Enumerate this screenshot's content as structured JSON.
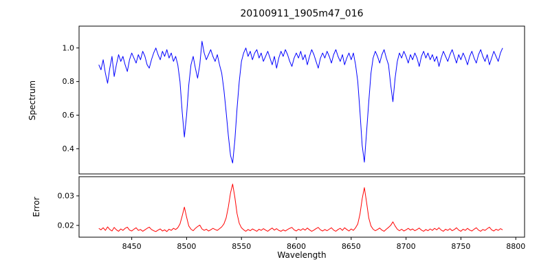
{
  "chart_data": {
    "type": "line",
    "title": "20100911_1905m47_016",
    "xlabel": "Wavelength",
    "axis_color": "#000000",
    "xlim": [
      8402,
      8808
    ],
    "xticks": [
      8450,
      8500,
      8550,
      8600,
      8650,
      8700,
      8750,
      8800
    ],
    "x": [
      8420,
      8422,
      8424,
      8426,
      8428,
      8430,
      8432,
      8434,
      8436,
      8438,
      8440,
      8442,
      8444,
      8446,
      8448,
      8450,
      8452,
      8454,
      8456,
      8458,
      8460,
      8462,
      8464,
      8466,
      8468,
      8470,
      8472,
      8474,
      8476,
      8478,
      8480,
      8482,
      8484,
      8486,
      8488,
      8490,
      8492,
      8494,
      8496,
      8498,
      8500,
      8502,
      8504,
      8506,
      8508,
      8510,
      8512,
      8514,
      8516,
      8518,
      8520,
      8522,
      8524,
      8526,
      8528,
      8530,
      8532,
      8534,
      8536,
      8538,
      8540,
      8542,
      8544,
      8546,
      8548,
      8550,
      8552,
      8554,
      8556,
      8558,
      8560,
      8562,
      8564,
      8566,
      8568,
      8570,
      8572,
      8574,
      8576,
      8578,
      8580,
      8582,
      8584,
      8586,
      8588,
      8590,
      8592,
      8594,
      8596,
      8598,
      8600,
      8602,
      8604,
      8606,
      8608,
      8610,
      8612,
      8614,
      8616,
      8618,
      8620,
      8622,
      8624,
      8626,
      8628,
      8630,
      8632,
      8634,
      8636,
      8638,
      8640,
      8642,
      8644,
      8646,
      8648,
      8650,
      8652,
      8654,
      8656,
      8658,
      8660,
      8662,
      8664,
      8666,
      8668,
      8670,
      8672,
      8674,
      8676,
      8678,
      8680,
      8682,
      8684,
      8686,
      8688,
      8690,
      8692,
      8694,
      8696,
      8698,
      8700,
      8702,
      8704,
      8706,
      8708,
      8710,
      8712,
      8714,
      8716,
      8718,
      8720,
      8722,
      8724,
      8726,
      8728,
      8730,
      8732,
      8734,
      8736,
      8738,
      8740,
      8742,
      8744,
      8746,
      8748,
      8750,
      8752,
      8754,
      8756,
      8758,
      8760,
      8762,
      8764,
      8766,
      8768,
      8770,
      8772,
      8774,
      8776,
      8778,
      8780,
      8782,
      8784,
      8786,
      8788
    ],
    "panels": [
      {
        "series_name": "spectrum-line",
        "ylabel": "Spectrum",
        "color": "#0000ff",
        "ylim": [
          0.25,
          1.13
        ],
        "yticks": [
          0.4,
          0.6,
          0.8,
          1.0
        ],
        "ytick_labels": [
          "0.4",
          "0.6",
          "0.8",
          "1.0"
        ],
        "values": [
          0.9,
          0.87,
          0.93,
          0.85,
          0.79,
          0.88,
          0.95,
          0.83,
          0.9,
          0.96,
          0.92,
          0.95,
          0.9,
          0.86,
          0.93,
          0.97,
          0.94,
          0.91,
          0.96,
          0.93,
          0.98,
          0.95,
          0.9,
          0.88,
          0.93,
          0.97,
          1.0,
          0.96,
          0.93,
          0.98,
          0.95,
          0.99,
          0.94,
          0.97,
          0.92,
          0.95,
          0.9,
          0.8,
          0.62,
          0.47,
          0.6,
          0.78,
          0.9,
          0.95,
          0.88,
          0.82,
          0.9,
          1.04,
          0.97,
          0.93,
          0.96,
          0.99,
          0.95,
          0.92,
          0.96,
          0.9,
          0.85,
          0.75,
          0.62,
          0.48,
          0.36,
          0.315,
          0.45,
          0.64,
          0.8,
          0.92,
          0.97,
          1.0,
          0.95,
          0.98,
          0.93,
          0.97,
          0.99,
          0.94,
          0.97,
          0.92,
          0.95,
          0.98,
          0.94,
          0.9,
          0.95,
          0.88,
          0.94,
          0.98,
          0.95,
          0.99,
          0.96,
          0.92,
          0.89,
          0.94,
          0.97,
          0.94,
          0.98,
          0.93,
          0.96,
          0.9,
          0.95,
          0.99,
          0.96,
          0.92,
          0.88,
          0.94,
          0.97,
          0.94,
          0.98,
          0.95,
          0.91,
          0.96,
          0.99,
          0.95,
          0.92,
          0.96,
          0.9,
          0.94,
          0.97,
          0.93,
          0.97,
          0.9,
          0.8,
          0.62,
          0.42,
          0.32,
          0.5,
          0.68,
          0.85,
          0.94,
          0.98,
          0.95,
          0.91,
          0.96,
          0.99,
          0.94,
          0.9,
          0.78,
          0.68,
          0.82,
          0.92,
          0.97,
          0.94,
          0.98,
          0.95,
          0.91,
          0.96,
          0.93,
          0.97,
          0.94,
          0.89,
          0.95,
          0.98,
          0.94,
          0.97,
          0.93,
          0.96,
          0.92,
          0.95,
          0.89,
          0.94,
          0.98,
          0.95,
          0.92,
          0.96,
          0.99,
          0.95,
          0.91,
          0.96,
          0.93,
          0.97,
          0.94,
          0.9,
          0.95,
          0.98,
          0.94,
          0.91,
          0.96,
          0.99,
          0.95,
          0.92,
          0.96,
          0.9,
          0.94,
          0.98,
          0.95,
          0.92,
          0.97,
          1.0
        ]
      },
      {
        "series_name": "error-line",
        "ylabel": "Error",
        "color": "#ff0000",
        "ylim": [
          0.016,
          0.0365
        ],
        "yticks": [
          0.02,
          0.03
        ],
        "ytick_labels": [
          "0.02",
          "0.03"
        ],
        "values": [
          0.019,
          0.0185,
          0.0192,
          0.0183,
          0.0195,
          0.0186,
          0.0181,
          0.0193,
          0.0185,
          0.018,
          0.0188,
          0.0183,
          0.019,
          0.0194,
          0.0184,
          0.0181,
          0.0187,
          0.0192,
          0.0183,
          0.0186,
          0.018,
          0.0185,
          0.019,
          0.0194,
          0.0186,
          0.0182,
          0.0179,
          0.0184,
          0.0188,
          0.0181,
          0.0185,
          0.0179,
          0.0187,
          0.0183,
          0.019,
          0.0186,
          0.0192,
          0.0205,
          0.0232,
          0.0262,
          0.0228,
          0.0198,
          0.0187,
          0.0182,
          0.019,
          0.0196,
          0.0201,
          0.0188,
          0.0183,
          0.0187,
          0.0181,
          0.0185,
          0.019,
          0.0186,
          0.0183,
          0.0189,
          0.0195,
          0.0205,
          0.0225,
          0.0262,
          0.031,
          0.034,
          0.0295,
          0.024,
          0.0207,
          0.0192,
          0.0185,
          0.018,
          0.0186,
          0.0182,
          0.0188,
          0.0184,
          0.018,
          0.0187,
          0.0183,
          0.0189,
          0.0184,
          0.018,
          0.0186,
          0.0191,
          0.0184,
          0.0189,
          0.0183,
          0.018,
          0.0185,
          0.0181,
          0.0186,
          0.019,
          0.0193,
          0.0185,
          0.0181,
          0.0187,
          0.0183,
          0.0189,
          0.0184,
          0.0191,
          0.0185,
          0.018,
          0.0184,
          0.0189,
          0.0193,
          0.0185,
          0.0181,
          0.0186,
          0.0182,
          0.0187,
          0.0192,
          0.0184,
          0.018,
          0.0186,
          0.019,
          0.0183,
          0.0192,
          0.0186,
          0.0181,
          0.0188,
          0.0183,
          0.0192,
          0.0205,
          0.0238,
          0.029,
          0.0328,
          0.0278,
          0.0225,
          0.0198,
          0.0187,
          0.0182,
          0.0186,
          0.0191,
          0.0184,
          0.018,
          0.0187,
          0.0193,
          0.02,
          0.0212,
          0.0198,
          0.0187,
          0.0182,
          0.0187,
          0.0181,
          0.0185,
          0.019,
          0.0184,
          0.0188,
          0.0182,
          0.0186,
          0.0191,
          0.0184,
          0.018,
          0.0186,
          0.0182,
          0.0188,
          0.0183,
          0.019,
          0.0185,
          0.0192,
          0.0184,
          0.018,
          0.0187,
          0.0183,
          0.0189,
          0.0182,
          0.0186,
          0.0192,
          0.0184,
          0.018,
          0.0187,
          0.0183,
          0.019,
          0.0184,
          0.0181,
          0.0187,
          0.0192,
          0.0184,
          0.018,
          0.0186,
          0.0183,
          0.0189,
          0.0194,
          0.0185,
          0.0181,
          0.0187,
          0.0183,
          0.0189,
          0.0185
        ]
      }
    ]
  }
}
